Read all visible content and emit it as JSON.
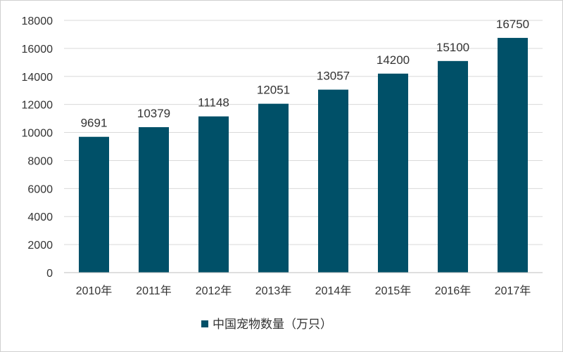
{
  "chart_data": {
    "type": "bar",
    "categories": [
      "2010年",
      "2011年",
      "2012年",
      "2013年",
      "2014年",
      "2015年",
      "2016年",
      "2017年"
    ],
    "series": [
      {
        "name": "中国宠物数量（万只）",
        "values": [
          9691,
          10379,
          11148,
          12051,
          13057,
          14200,
          15100,
          16750
        ]
      }
    ],
    "ylim": [
      0,
      18000
    ],
    "ytick_step": 2000,
    "yticks": [
      "0",
      "2000",
      "4000",
      "6000",
      "8000",
      "10000",
      "12000",
      "14000",
      "16000",
      "18000"
    ],
    "data_labels": [
      "9691",
      "10379",
      "11148",
      "12051",
      "13057",
      "14200",
      "15100",
      "16750"
    ],
    "grid": true,
    "legend_position": "bottom",
    "colors": {
      "bar": "#005068",
      "grid": "#d9d9d9",
      "axis": "#bfbfbf",
      "text": "#333333"
    }
  }
}
